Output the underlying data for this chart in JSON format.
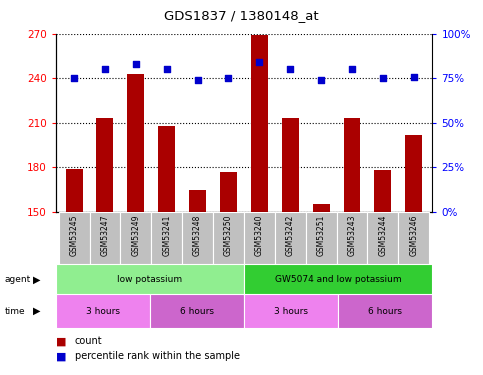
{
  "title": "GDS1837 / 1380148_at",
  "samples": [
    "GSM53245",
    "GSM53247",
    "GSM53249",
    "GSM53241",
    "GSM53248",
    "GSM53250",
    "GSM53240",
    "GSM53242",
    "GSM53251",
    "GSM53243",
    "GSM53244",
    "GSM53246"
  ],
  "counts": [
    179,
    213,
    243,
    208,
    165,
    177,
    269,
    213,
    155,
    213,
    178,
    202
  ],
  "percentiles": [
    75,
    80,
    83,
    80,
    74,
    75,
    84,
    80,
    74,
    80,
    75,
    76
  ],
  "ylim_left": [
    150,
    270
  ],
  "ylim_right": [
    0,
    100
  ],
  "yticks_left": [
    150,
    180,
    210,
    240,
    270
  ],
  "yticks_right": [
    0,
    25,
    50,
    75,
    100
  ],
  "ytick_labels_right": [
    "0%",
    "25%",
    "50%",
    "75%",
    "100%"
  ],
  "bar_color": "#AA0000",
  "dot_color": "#0000CC",
  "agent_groups": [
    {
      "label": "low potassium",
      "start": 0,
      "end": 6,
      "color": "#90EE90"
    },
    {
      "label": "GW5074 and low potassium",
      "start": 6,
      "end": 12,
      "color": "#32CD32"
    }
  ],
  "time_groups": [
    {
      "label": "3 hours",
      "start": 0,
      "end": 3,
      "color": "#EE82EE"
    },
    {
      "label": "6 hours",
      "start": 3,
      "end": 6,
      "color": "#CC66CC"
    },
    {
      "label": "3 hours",
      "start": 6,
      "end": 9,
      "color": "#EE82EE"
    },
    {
      "label": "6 hours",
      "start": 9,
      "end": 12,
      "color": "#CC66CC"
    }
  ],
  "legend_count_color": "#AA0000",
  "legend_dot_color": "#0000CC",
  "bar_width": 0.55
}
